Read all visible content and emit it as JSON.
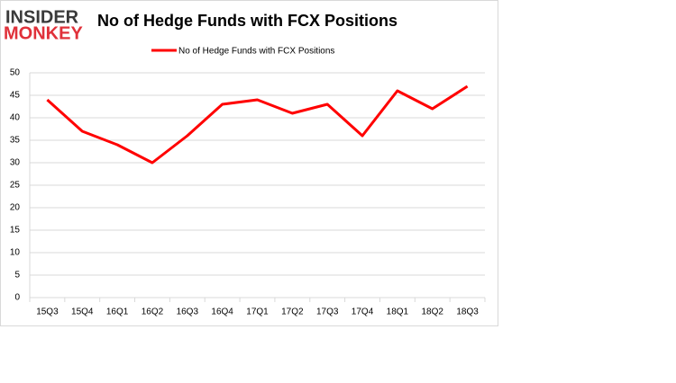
{
  "logo": {
    "line1": "INSIDER",
    "line2": "MONKEY"
  },
  "chart_data": {
    "type": "line",
    "title": "No of Hedge Funds with FCX Positions",
    "categories": [
      "15Q3",
      "15Q4",
      "16Q1",
      "16Q2",
      "16Q3",
      "16Q4",
      "17Q1",
      "17Q2",
      "17Q3",
      "17Q4",
      "18Q1",
      "18Q2",
      "18Q3"
    ],
    "series": [
      {
        "name": "No of Hedge Funds with FCX Positions",
        "color": "#ff0000",
        "values": [
          44,
          37,
          34,
          30,
          36,
          43,
          44,
          41,
          43,
          36,
          46,
          42,
          47
        ]
      }
    ],
    "ylim": [
      0,
      50
    ],
    "yticks": [
      0,
      5,
      10,
      15,
      20,
      25,
      30,
      35,
      40,
      45,
      50
    ],
    "grid": true,
    "legend": "top"
  }
}
